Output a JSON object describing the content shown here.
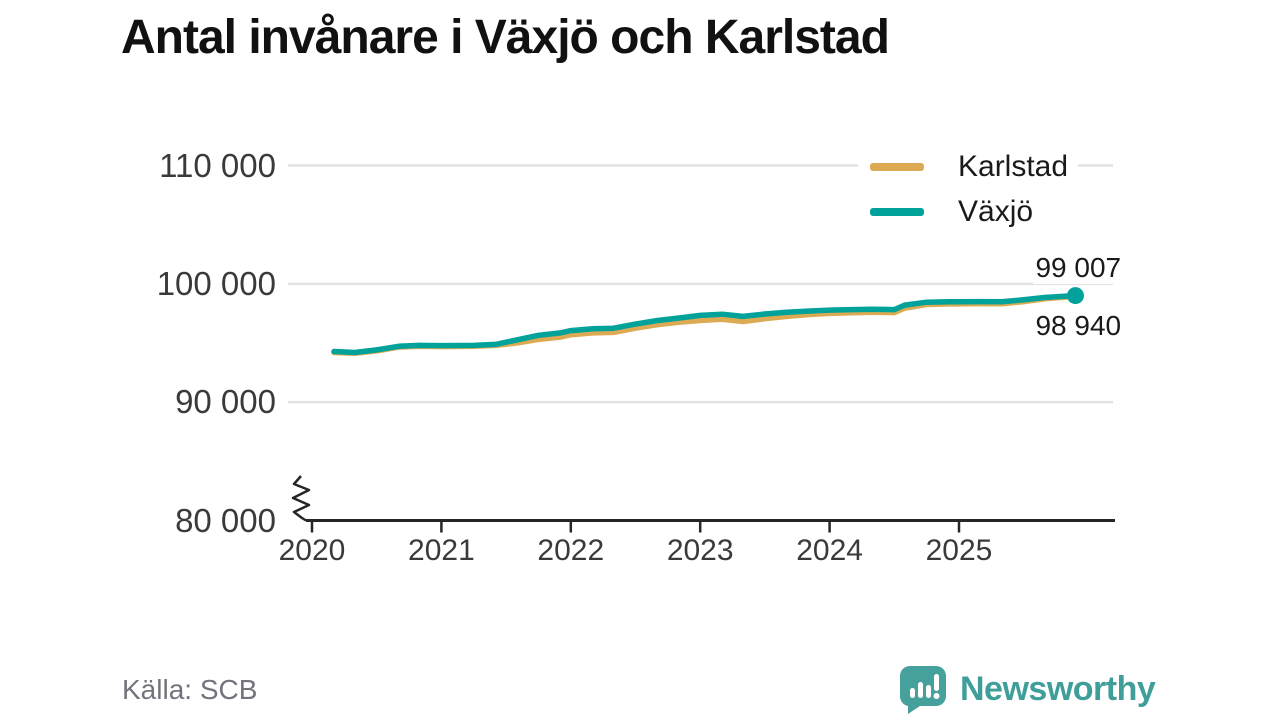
{
  "title": "Antal invånare i Växjö och Karlstad",
  "source": "Källa: SCB",
  "brand": {
    "name": "Newsworthy",
    "color": "#46a19c",
    "logo_icon": "speech-bubble-bar-chart-icon"
  },
  "colors": {
    "karlstad": "#dcaa52",
    "vaxjo": "#00a29a",
    "grid": "#e2e2e2",
    "axis": "#262626",
    "text": "#3a3a3a",
    "muted": "#73737d"
  },
  "legend": [
    {
      "label": "Karlstad",
      "color": "#dcaa52"
    },
    {
      "label": "Växjö",
      "color": "#00a29a"
    }
  ],
  "end_labels": {
    "vaxjo": "99 007",
    "karlstad": "98 940"
  },
  "chart_data": {
    "type": "line",
    "title": "Antal invånare i Växjö och Karlstad",
    "xlabel": "",
    "ylabel": "",
    "ylim": [
      80000,
      110000
    ],
    "axis_break_at_bottom": true,
    "grid": "horizontal",
    "legend_position": "top-right",
    "yticks": [
      80000,
      90000,
      100000,
      110000
    ],
    "ytick_labels": [
      "80 000",
      "90 000",
      "100 000",
      "110 000"
    ],
    "xticks": [
      2020,
      2021,
      2022,
      2023,
      2024,
      2025
    ],
    "xtick_labels": [
      "2020",
      "2021",
      "2022",
      "2023",
      "2024",
      "2025"
    ],
    "x": [
      2020.17,
      2020.33,
      2020.5,
      2020.67,
      2020.83,
      2021.0,
      2021.25,
      2021.42,
      2021.58,
      2021.75,
      2021.92,
      2022.0,
      2022.17,
      2022.33,
      2022.5,
      2022.67,
      2022.83,
      2023.0,
      2023.17,
      2023.33,
      2023.5,
      2023.67,
      2023.83,
      2024.0,
      2024.17,
      2024.33,
      2024.5,
      2024.58,
      2024.75,
      2024.92,
      2025.0,
      2025.17,
      2025.33,
      2025.5,
      2025.67,
      2025.9
    ],
    "series": [
      {
        "name": "Karlstad",
        "color": "#dcaa52",
        "values": [
          94200,
          94130,
          94330,
          94650,
          94730,
          94700,
          94720,
          94800,
          95000,
          95300,
          95500,
          95700,
          95850,
          95900,
          96250,
          96550,
          96750,
          96900,
          97000,
          96820,
          97050,
          97250,
          97400,
          97500,
          97560,
          97600,
          97570,
          97950,
          98250,
          98300,
          98300,
          98330,
          98320,
          98500,
          98750,
          98940
        ],
        "last_value": 98940,
        "last_value_label": "98 940"
      },
      {
        "name": "Växjö",
        "color": "#00a29a",
        "values": [
          94280,
          94200,
          94420,
          94720,
          94800,
          94780,
          94800,
          94880,
          95250,
          95650,
          95850,
          96050,
          96200,
          96250,
          96600,
          96900,
          97100,
          97330,
          97430,
          97250,
          97450,
          97600,
          97700,
          97780,
          97820,
          97850,
          97820,
          98200,
          98450,
          98480,
          98480,
          98500,
          98480,
          98650,
          98850,
          99007
        ],
        "last_value": 99007,
        "last_value_label": "99 007",
        "end_dot": true
      }
    ]
  }
}
